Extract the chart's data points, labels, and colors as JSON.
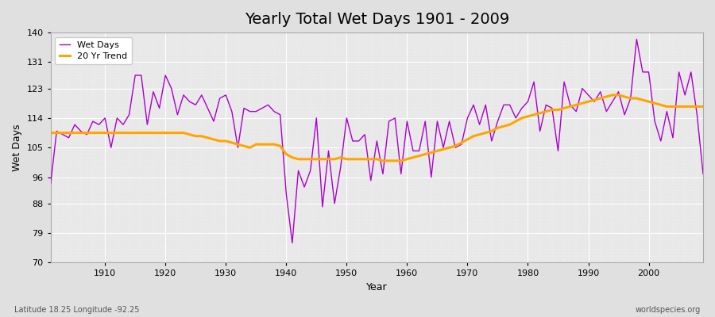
{
  "title": "Yearly Total Wet Days 1901 - 2009",
  "xlabel": "Year",
  "ylabel": "Wet Days",
  "footnote_left": "Latitude 18.25 Longitude -92.25",
  "footnote_right": "worldspecies.org",
  "ylim": [
    70,
    140
  ],
  "yticks": [
    70,
    79,
    88,
    96,
    105,
    114,
    123,
    131,
    140
  ],
  "line_color": "#aa00cc",
  "trend_color": "#ffa500",
  "bg_color": "#e8e8e8",
  "fig_color": "#e0e0e0",
  "years": [
    1901,
    1902,
    1903,
    1904,
    1905,
    1906,
    1907,
    1908,
    1909,
    1910,
    1911,
    1912,
    1913,
    1914,
    1915,
    1916,
    1917,
    1918,
    1919,
    1920,
    1921,
    1922,
    1923,
    1924,
    1925,
    1926,
    1927,
    1928,
    1929,
    1930,
    1931,
    1932,
    1933,
    1934,
    1935,
    1936,
    1937,
    1938,
    1939,
    1940,
    1941,
    1942,
    1943,
    1944,
    1945,
    1946,
    1947,
    1948,
    1949,
    1950,
    1951,
    1952,
    1953,
    1954,
    1955,
    1956,
    1957,
    1958,
    1959,
    1960,
    1961,
    1962,
    1963,
    1964,
    1965,
    1966,
    1967,
    1968,
    1969,
    1970,
    1971,
    1972,
    1973,
    1974,
    1975,
    1976,
    1977,
    1978,
    1979,
    1980,
    1981,
    1982,
    1983,
    1984,
    1985,
    1986,
    1987,
    1988,
    1989,
    1990,
    1991,
    1992,
    1993,
    1994,
    1995,
    1996,
    1997,
    1998,
    1999,
    2000,
    2001,
    2002,
    2003,
    2004,
    2005,
    2006,
    2007,
    2008,
    2009
  ],
  "wet_days": [
    94,
    110,
    109,
    108,
    112,
    110,
    109,
    113,
    112,
    114,
    105,
    114,
    112,
    115,
    127,
    127,
    112,
    122,
    117,
    127,
    123,
    115,
    121,
    119,
    118,
    121,
    117,
    113,
    120,
    121,
    116,
    105,
    117,
    116,
    116,
    117,
    118,
    116,
    115,
    91,
    76,
    98,
    93,
    98,
    114,
    87,
    104,
    88,
    99,
    114,
    107,
    107,
    109,
    95,
    107,
    97,
    113,
    114,
    97,
    113,
    104,
    104,
    113,
    96,
    113,
    105,
    113,
    105,
    106,
    114,
    118,
    112,
    118,
    107,
    113,
    118,
    118,
    114,
    117,
    119,
    125,
    110,
    118,
    117,
    104,
    125,
    118,
    116,
    123,
    121,
    119,
    122,
    116,
    119,
    122,
    115,
    120,
    138,
    128,
    128,
    113,
    107,
    116,
    108,
    128,
    121,
    128,
    115,
    97
  ],
  "trend": [
    109.5,
    109.5,
    109.5,
    109.5,
    109.5,
    109.5,
    109.5,
    109.5,
    109.5,
    109.5,
    109.5,
    109.5,
    109.5,
    109.5,
    109.5,
    109.5,
    109.5,
    109.5,
    109.5,
    109.5,
    109.5,
    109.5,
    109.5,
    109.0,
    108.5,
    108.5,
    108.0,
    107.5,
    107.0,
    107.0,
    106.5,
    106.0,
    105.5,
    105.0,
    106.0,
    106.0,
    106.0,
    106.0,
    105.5,
    103.0,
    102.0,
    101.5,
    101.5,
    101.5,
    101.5,
    101.5,
    101.5,
    101.5,
    102.0,
    101.5,
    101.5,
    101.5,
    101.5,
    101.5,
    101.5,
    101.0,
    101.0,
    101.0,
    101.0,
    101.5,
    102.0,
    102.5,
    103.0,
    103.5,
    104.0,
    104.5,
    105.0,
    105.5,
    106.5,
    107.5,
    108.5,
    109.0,
    109.5,
    110.0,
    111.0,
    111.5,
    112.0,
    113.0,
    114.0,
    114.5,
    115.0,
    115.5,
    116.0,
    116.5,
    116.5,
    117.0,
    117.5,
    118.0,
    118.5,
    119.0,
    119.5,
    120.0,
    120.5,
    121.0,
    121.0,
    120.5,
    120.0,
    120.0,
    119.5,
    119.0,
    118.5,
    118.0,
    117.5,
    117.5,
    117.5,
    117.5,
    117.5,
    117.5,
    117.5
  ]
}
